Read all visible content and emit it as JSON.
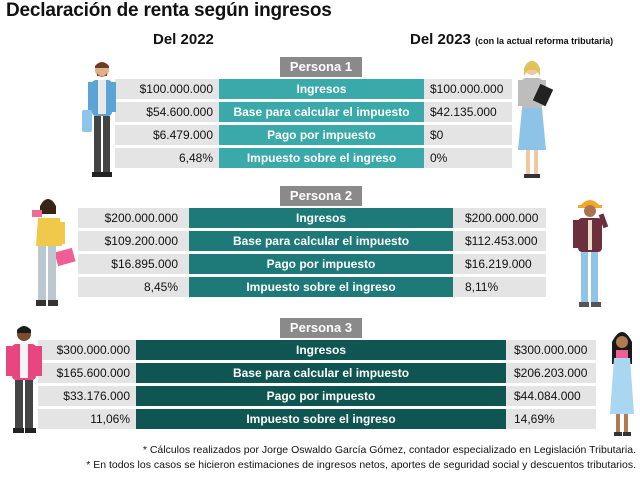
{
  "title": "Declaración de renta según ingresos",
  "header": {
    "col_2022": "Del 2022",
    "col_2023": "Del 2023",
    "col_2023_note": "(con la actual reforma tributaria)"
  },
  "colors": {
    "p1": "#3aa9a9",
    "p2": "#1d7a78",
    "p3": "#0f5551",
    "tag": "#8a8a8a",
    "row_bg": "#e4e4e4"
  },
  "personas": [
    {
      "label": "Persona 1",
      "rows": [
        {
          "left": "$100.000.000",
          "label": "Ingresos",
          "right": "$100.000.000"
        },
        {
          "left": "$54.600.000",
          "label": "Base para calcular el impuesto",
          "right": "$42.135.000"
        },
        {
          "left": "$6.479.000",
          "label": "Pago por impuesto",
          "right": "$0"
        },
        {
          "left": "6,48%",
          "label": "Impuesto sobre el ingreso",
          "right": "0%"
        }
      ]
    },
    {
      "label": "Persona 2",
      "rows": [
        {
          "left": "$200.000.000",
          "label": "Ingresos",
          "right": "$200.000.000"
        },
        {
          "left": "$109.200.000",
          "label": "Base para calcular el impuesto",
          "right": "$112.453.000"
        },
        {
          "left": "$16.895.000",
          "label": "Pago por impuesto",
          "right": "$16.219.000"
        },
        {
          "left": "8,45%",
          "label": "Impuesto sobre el ingreso",
          "right": "8,11%"
        }
      ]
    },
    {
      "label": "Persona 3",
      "rows": [
        {
          "left": "$300.000.000",
          "label": "Ingresos",
          "right": "$300.000.000"
        },
        {
          "left": "$165.600.000",
          "label": "Base para calcular el impuesto",
          "right": "$206.203.000"
        },
        {
          "left": "$33.176.000",
          "label": "Pago por impuesto",
          "right": "$44.084.000"
        },
        {
          "left": "11,06%",
          "label": "Impuesto sobre el ingreso",
          "right": "14,69%"
        }
      ]
    }
  ],
  "footnotes": [
    "* Cálculos realizados por Jorge Oswaldo García Gómez, contador especializado en Legislación Tributaria.",
    "* En todos los casos se hicieron estimaciones de ingresos netos, aportes de seguridad social y descuentos tributarios."
  ],
  "illustrations": [
    "man-with-bag-icon",
    "woman-with-folder-icon",
    "woman-with-phone-icon",
    "worker-with-helmet-icon",
    "man-in-pink-jacket-icon",
    "woman-in-blue-dress-icon"
  ]
}
